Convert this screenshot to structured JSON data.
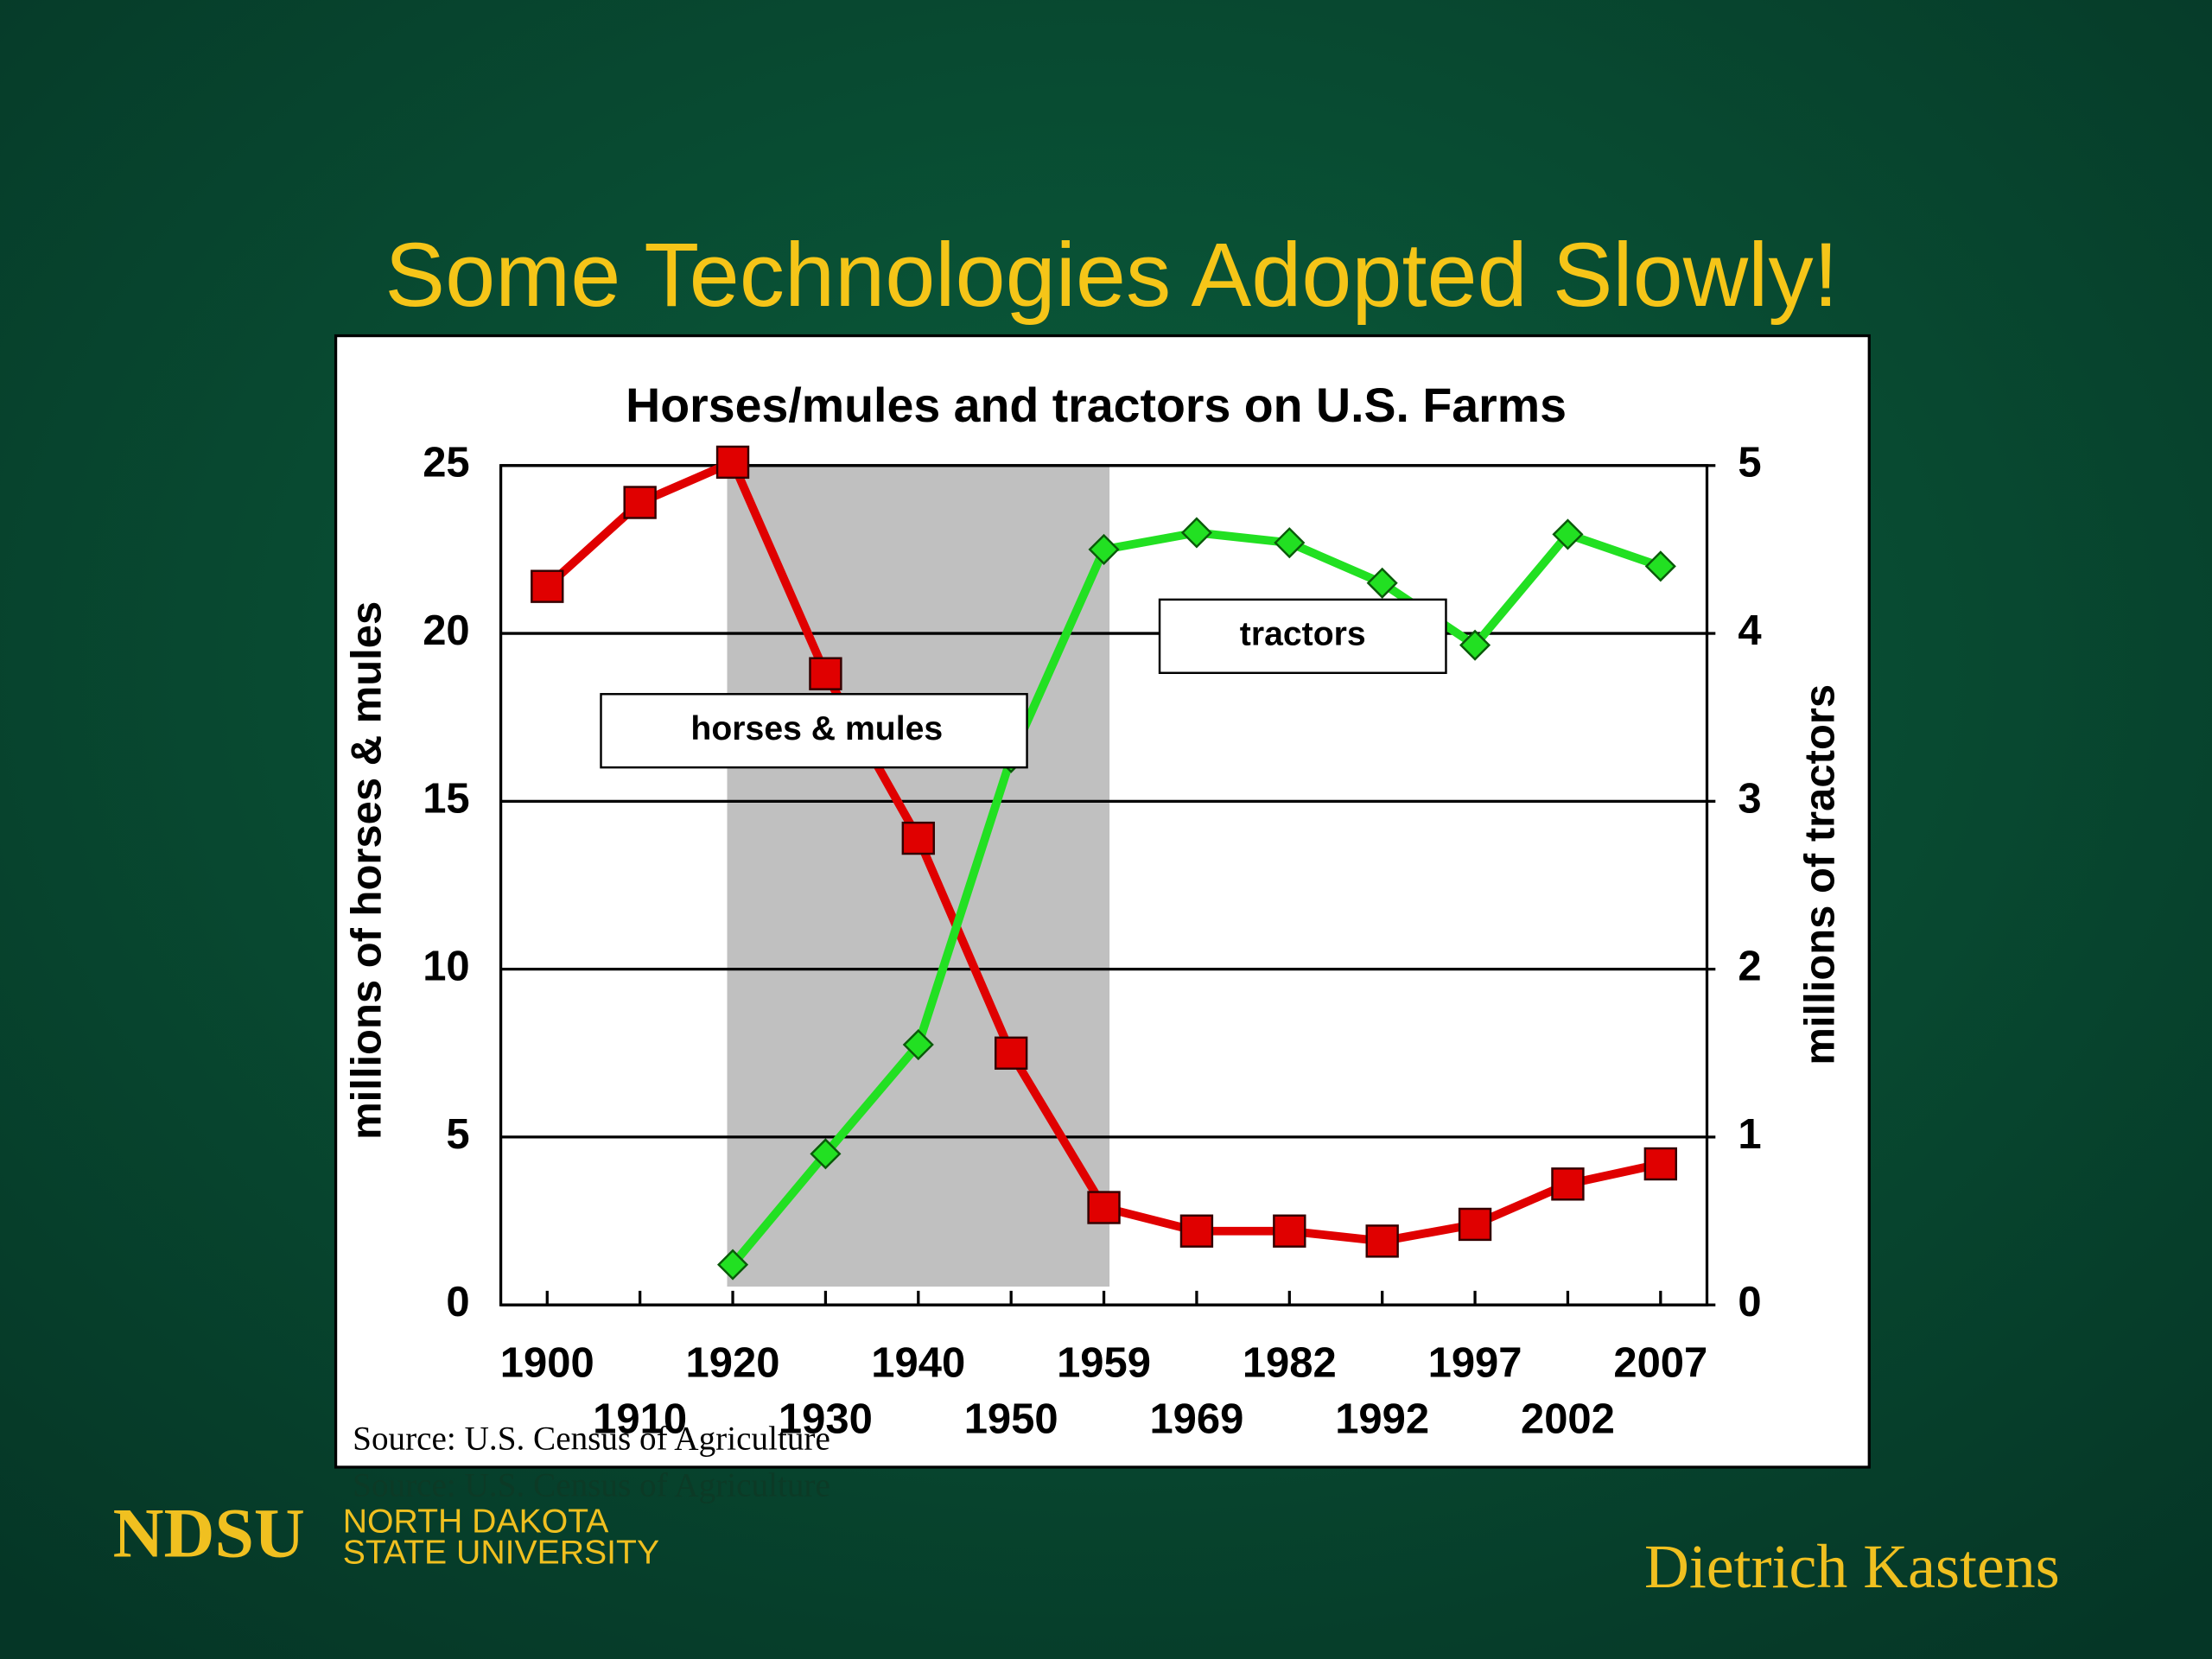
{
  "slide": {
    "title": "Some  Technologies Adopted Slowly!",
    "logo": "NDSU",
    "logo_line1": "NORTH DAKOTA",
    "logo_line2": "STATE UNIVERSITY",
    "author": "Dietrich Kastens"
  },
  "chart_data": {
    "type": "line",
    "title": "Horses/mules and tractors on U.S. Farms",
    "y_label": "millions of horses & mules",
    "y2_label": "millions of tractors",
    "source": "Source:  U.S. Census of Agriculture",
    "categories": [
      "1900",
      "1910",
      "1920",
      "1930",
      "1940",
      "1950",
      "1959",
      "1969",
      "1982",
      "1992",
      "1997",
      "2002",
      "2007"
    ],
    "series": [
      {
        "name": "horses & mules",
        "color": "#e00000",
        "marker": "square",
        "values": [
          21.4,
          23.9,
          25.1,
          18.8,
          13.9,
          7.5,
          2.9,
          2.2,
          2.2,
          1.9,
          2.4,
          3.6,
          4.2
        ]
      },
      {
        "name": "tractors",
        "color": "#22e022",
        "marker": "diamond",
        "axis": "y2",
        "values": [
          null,
          null,
          0.24,
          0.9,
          1.55,
          3.26,
          4.5,
          4.6,
          4.54,
          4.3,
          3.93,
          4.59,
          4.4
        ]
      }
    ],
    "ylim": [
      0,
      25
    ],
    "yticks": [
      0,
      5,
      10,
      15,
      20,
      25
    ],
    "y2lim": [
      0,
      5
    ],
    "y2ticks": [
      0,
      1,
      2,
      3,
      4,
      5
    ],
    "grid": true,
    "highlight": {
      "from": "1920",
      "to": "1959",
      "color": "#c0c0c0"
    }
  }
}
